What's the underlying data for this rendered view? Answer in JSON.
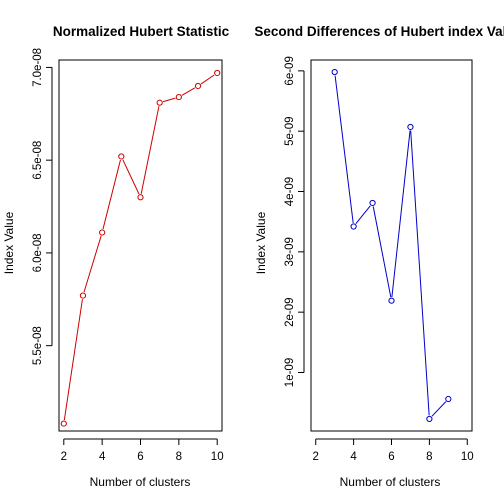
{
  "chart_data": [
    {
      "type": "line",
      "title": "Normalized Hubert Statistic",
      "xlabel": "Number of clusters",
      "ylabel": "Index Value",
      "color": "#cc0000",
      "x": [
        2,
        3,
        4,
        5,
        6,
        7,
        8,
        9,
        10
      ],
      "y": [
        5.08e-08,
        5.77e-08,
        6.11e-08,
        6.52e-08,
        6.3e-08,
        6.81e-08,
        6.84e-08,
        6.9e-08,
        6.97e-08
      ],
      "xlim": [
        1.75,
        10.25
      ],
      "ylim": [
        5.04e-08,
        7.04e-08
      ],
      "xticks": [
        2,
        4,
        6,
        8,
        10
      ],
      "xtick_labels": [
        "2",
        "4",
        "6",
        "8",
        "10"
      ],
      "yticks": [
        5.5e-08,
        6e-08,
        6.5e-08,
        7e-08
      ],
      "ytick_labels": [
        "5.5e-08",
        "6.0e-08",
        "6.5e-08",
        "7.0e-08"
      ]
    },
    {
      "type": "line",
      "title": "Second Differences of Hubert index Values",
      "xlabel": "Number of clusters",
      "ylabel": "Index Value",
      "color": "#0000cc",
      "x": [
        3,
        4,
        5,
        6,
        7,
        8,
        9
      ],
      "y": [
        5.98e-09,
        3.42e-09,
        3.81e-09,
        2.19e-09,
        5.07e-09,
        2.3e-10,
        5.6e-10
      ],
      "xlim": [
        1.75,
        10.25
      ],
      "ylim": [
        3e-11,
        6.18e-09
      ],
      "xticks": [
        2,
        4,
        6,
        8,
        10
      ],
      "xtick_labels": [
        "2",
        "4",
        "6",
        "8",
        "10"
      ],
      "yticks": [
        1e-09,
        2e-09,
        3e-09,
        4e-09,
        5e-09,
        6e-09
      ],
      "ytick_labels": [
        "1e-09",
        "2e-09",
        "3e-09",
        "4e-09",
        "5e-09",
        "6e-09"
      ]
    }
  ]
}
